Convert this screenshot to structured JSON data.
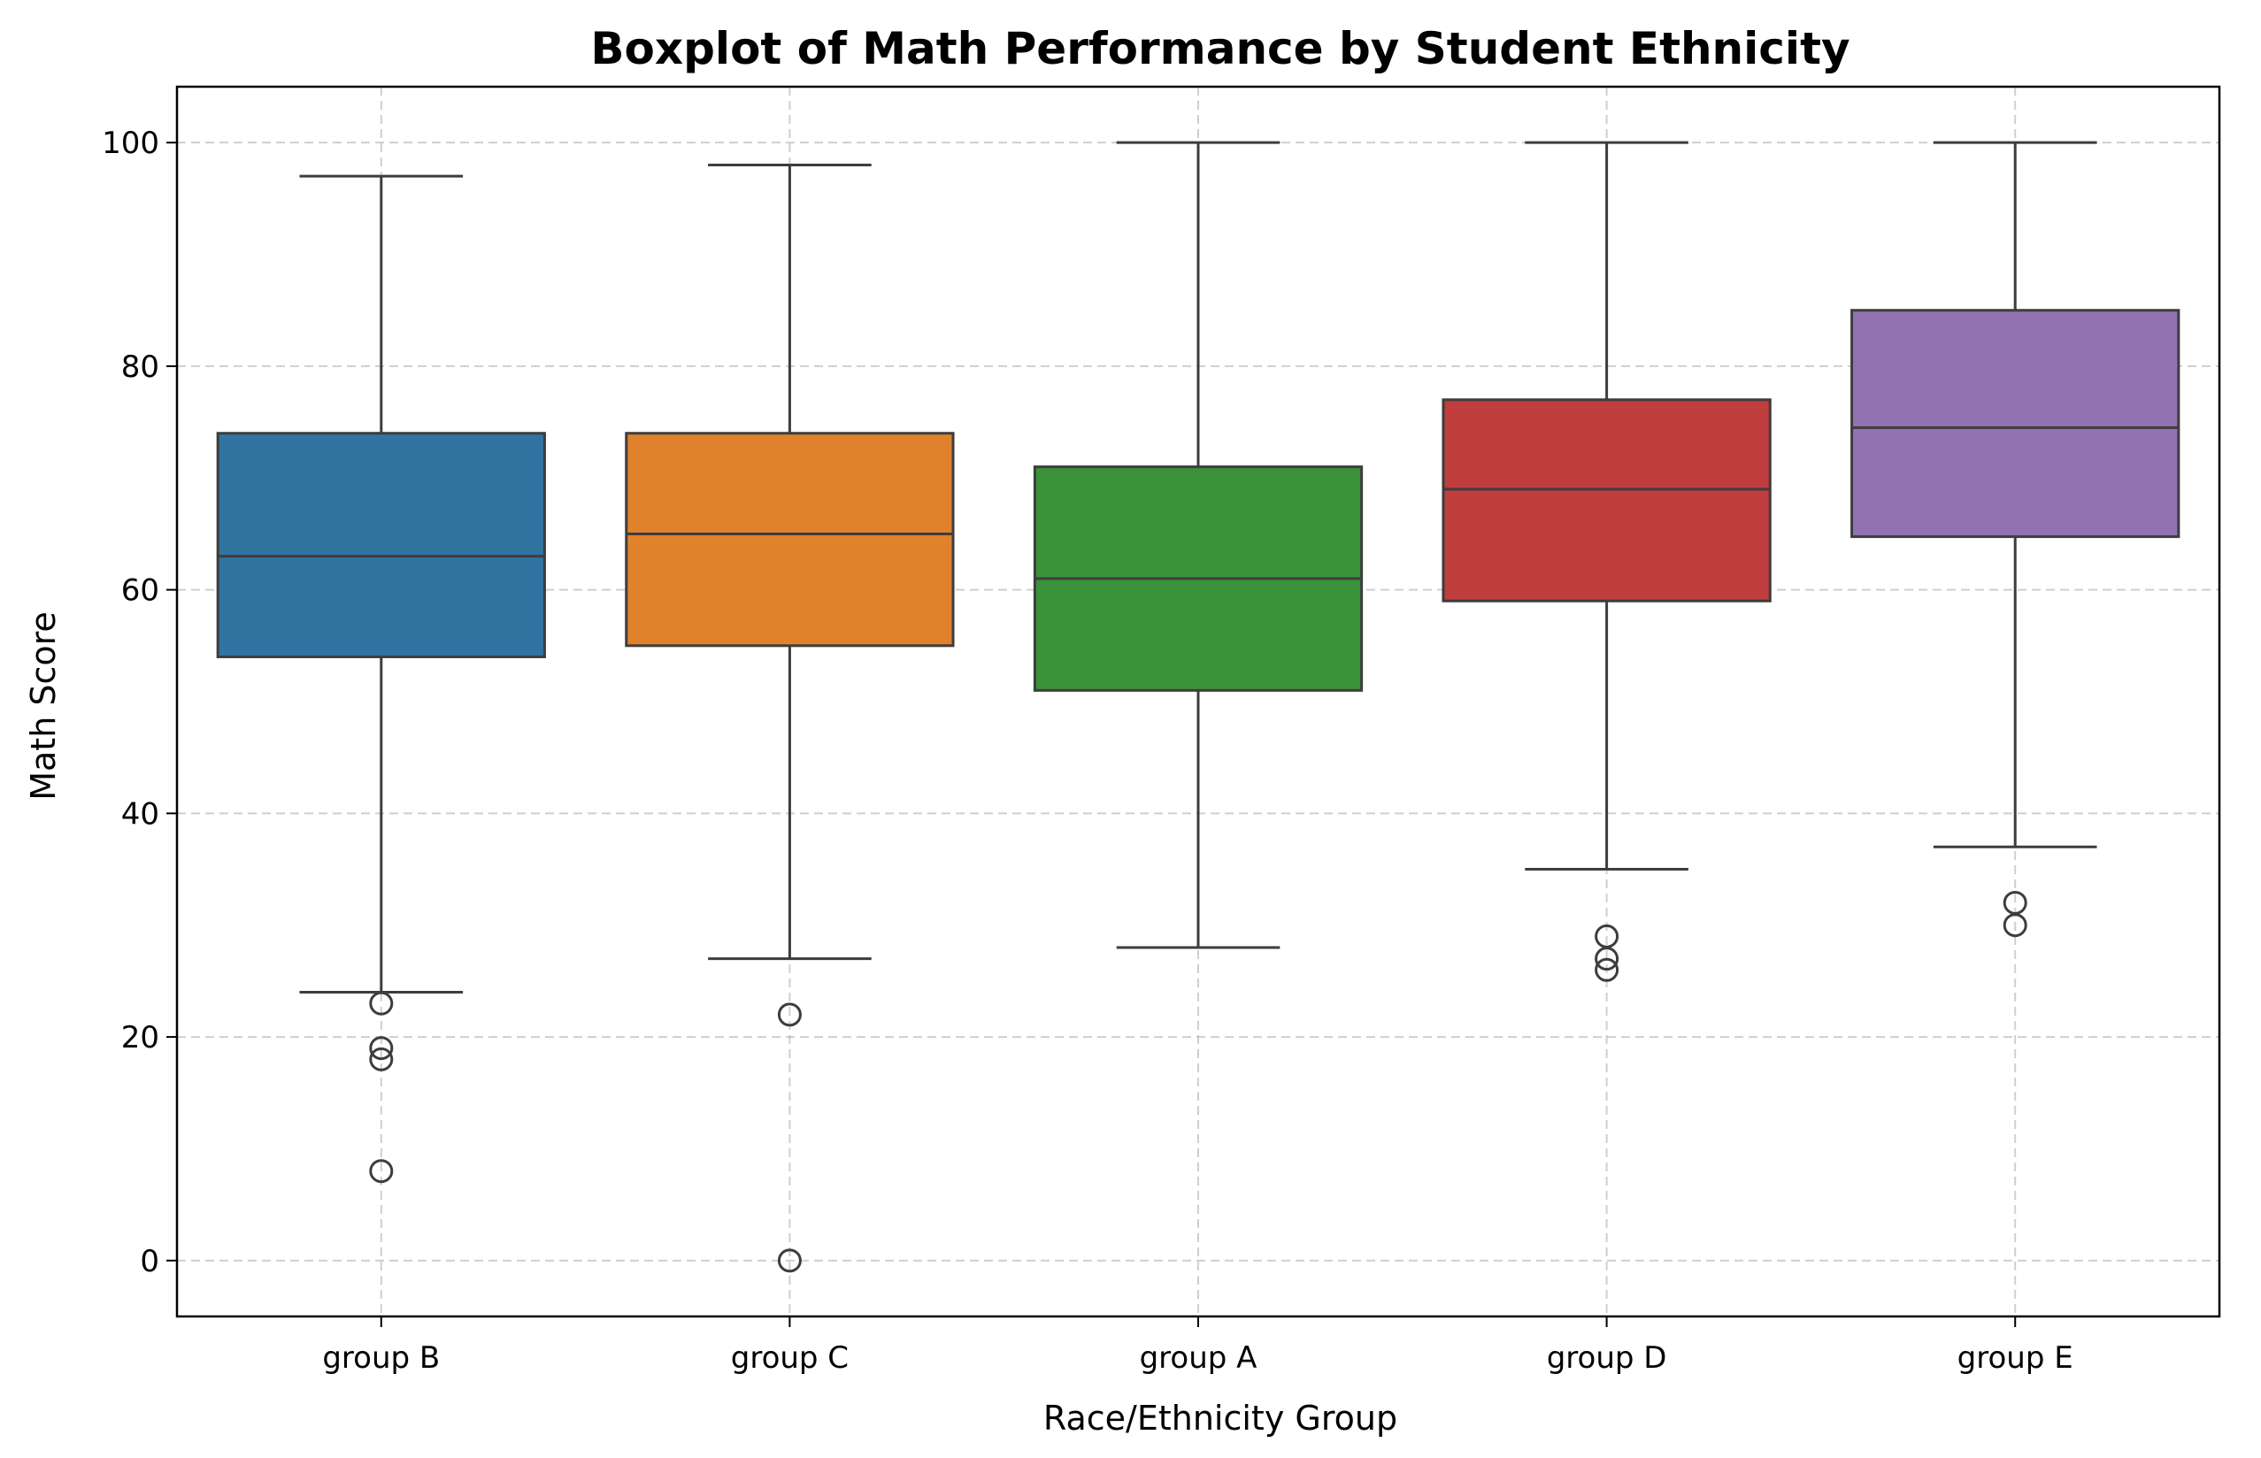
{
  "chart_data": {
    "type": "boxplot",
    "title": "Boxplot of Math Performance by Student Ethnicity",
    "xlabel": "Race/Ethnicity Group",
    "ylabel": "Math Score",
    "ylim": [
      -5,
      105
    ],
    "yticks": [
      0,
      20,
      40,
      60,
      80,
      100
    ],
    "grid": true,
    "categories": [
      "group B",
      "group C",
      "group A",
      "group D",
      "group E"
    ],
    "colors": [
      "#3274a1",
      "#e1812c",
      "#3a923a",
      "#c03d3e",
      "#9372b2"
    ],
    "boxes": [
      {
        "category": "group B",
        "whisker_low": 24,
        "q1": 54,
        "median": 63,
        "q3": 74,
        "whisker_high": 97,
        "outliers": [
          23,
          19,
          18,
          8
        ]
      },
      {
        "category": "group C",
        "whisker_low": 27,
        "q1": 55,
        "median": 65,
        "q3": 74,
        "whisker_high": 98,
        "outliers": [
          22,
          0
        ]
      },
      {
        "category": "group A",
        "whisker_low": 28,
        "q1": 51,
        "median": 61,
        "q3": 71,
        "whisker_high": 100,
        "outliers": []
      },
      {
        "category": "group D",
        "whisker_low": 35,
        "q1": 59,
        "median": 69,
        "q3": 77,
        "whisker_high": 100,
        "outliers": [
          29,
          27,
          26
        ]
      },
      {
        "category": "group E",
        "whisker_low": 37,
        "q1": 64.75,
        "median": 74.5,
        "q3": 85,
        "whisker_high": 100,
        "outliers": [
          32,
          30
        ]
      }
    ]
  }
}
